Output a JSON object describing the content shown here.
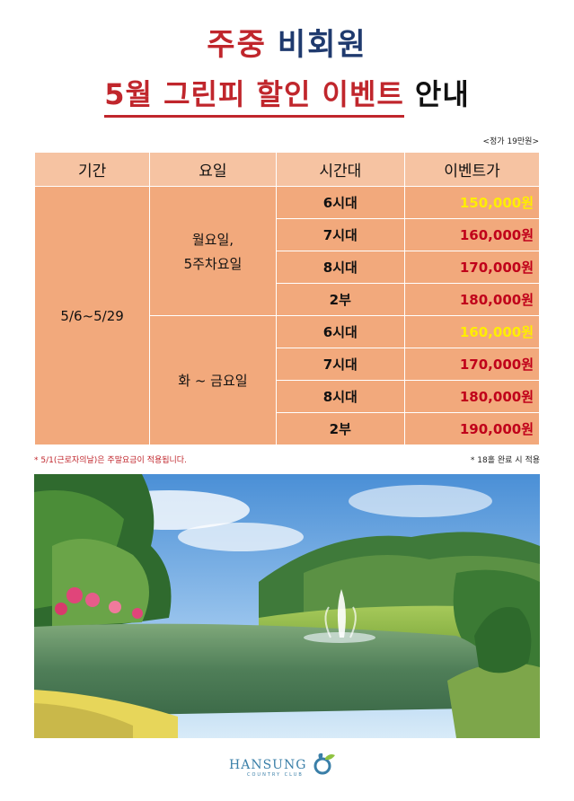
{
  "title_line1": {
    "part_red": "주중",
    "part_navy": "비회원"
  },
  "title_line2": {
    "part_red": "5월 그린피 할인 이벤트",
    "part_black": "안내"
  },
  "regular_price_note": "<정가 19만원>",
  "table": {
    "headers": [
      "기간",
      "요일",
      "시간대",
      "이벤트가"
    ],
    "period": "5/6~5/29",
    "group1_days_line1": "월요일,",
    "group1_days_line2": "5주차요일",
    "group2_days": "화 ~ 금요일",
    "rows": [
      {
        "slot": "6시대",
        "price": "150,000원"
      },
      {
        "slot": "7시대",
        "price": "160,000원"
      },
      {
        "slot": "8시대",
        "price": "170,000원"
      },
      {
        "slot": "2부",
        "price": "180,000원"
      },
      {
        "slot": "6시대",
        "price": "160,000원"
      },
      {
        "slot": "7시대",
        "price": "170,000원"
      },
      {
        "slot": "8시대",
        "price": "180,000원"
      },
      {
        "slot": "2부",
        "price": "190,000원"
      }
    ]
  },
  "note_left": "* 5/1(근로자의날)은 주말요금이 적용됩니다.",
  "note_right": "* 18홀 완료 시 적용",
  "logo": {
    "name": "HANSUNG",
    "sub": "COUNTRY CLUB"
  },
  "colors": {
    "red": "#c0262c",
    "navy": "#1f3a6e",
    "header_bg": "#f6c3a2",
    "cell_bg": "#f2a97c",
    "price_highlight": "#ffee00",
    "price_normal": "#c0001a"
  },
  "price_highlight_rows": [
    0,
    4
  ]
}
